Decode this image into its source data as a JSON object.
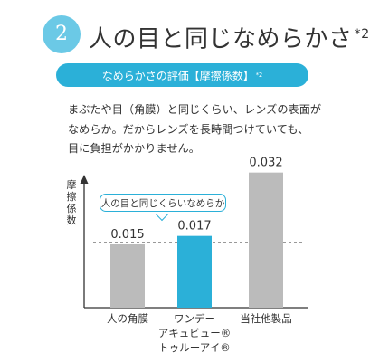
{
  "header": {
    "number": "2",
    "title": "人の目と同じなめらかさ",
    "footnote_mark": "*2"
  },
  "banner": {
    "text": "なめらかさの評価【摩擦係数】",
    "footnote_mark": "*2"
  },
  "description": {
    "lines": [
      "まぶたや目（角膜）と同じくらい、レンズの表面が",
      "なめらか。だからレンズを長時間つけていても、",
      "目に負担がかかりません。"
    ]
  },
  "colors": {
    "accent": "#2bb0d8",
    "badge": "#6bc9e6",
    "gray_bar": "#bbbbbb",
    "text": "#333333"
  },
  "chart_data": {
    "type": "bar",
    "ylabel": "摩擦係数",
    "categories": [
      "人の角膜",
      "ワンデー アキュビュー® トゥルーアイ®",
      "当社他製品"
    ],
    "category_lines": [
      [
        "人の角膜"
      ],
      [
        "ワンデー",
        "アキュビュー®",
        "トゥルーアイ®"
      ],
      [
        "当社他製品"
      ]
    ],
    "values": [
      0.015,
      0.017,
      0.032
    ],
    "value_labels": [
      "0.015",
      "0.017",
      "0.032"
    ],
    "bar_colors": [
      "#bbbbbb",
      "#2bb0d8",
      "#bbbbbb"
    ],
    "reference_line": 0.015,
    "callout": "人の目と同じくらいなめらか",
    "ylim": [
      0,
      0.036
    ],
    "grid": false,
    "legend": "none"
  }
}
